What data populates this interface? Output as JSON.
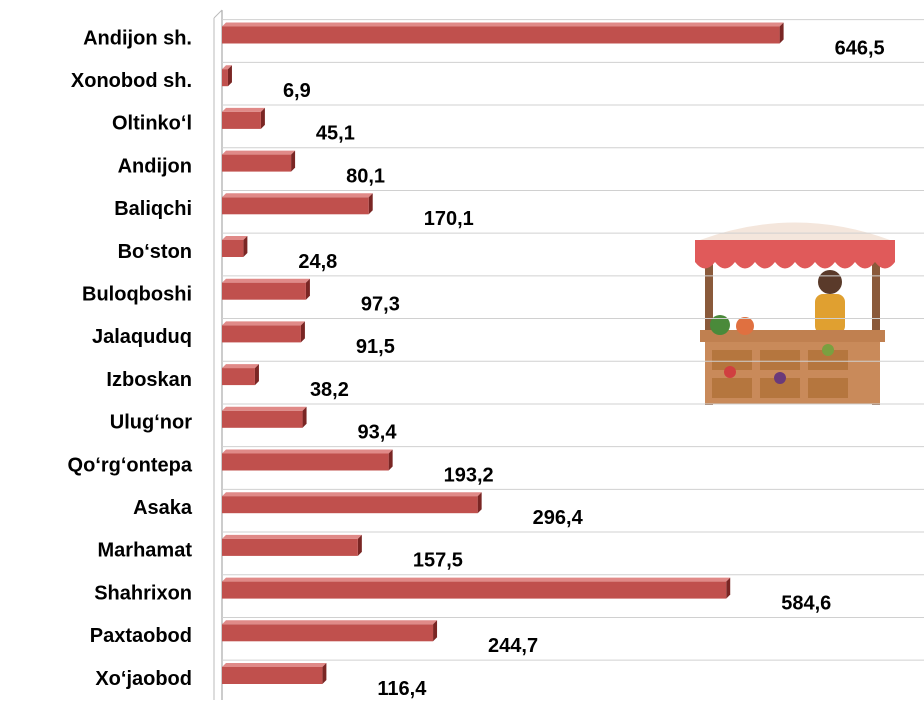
{
  "chart_data": {
    "type": "bar",
    "orientation": "horizontal",
    "color": "#c0504d",
    "categories": [
      "Andijon sh.",
      "Xonobod sh.",
      "Oltinko‘l",
      "Andijon",
      "Baliqchi",
      "Bo‘ston",
      "Buloqboshi",
      "Jalaquduq",
      "Izboskan",
      "Ulug‘nor",
      "Qo‘rg‘ontepa",
      "Asaka",
      "Marhamat",
      "Shahrixon",
      "Paxtaobod",
      "Xo‘jaobod"
    ],
    "values": [
      646.5,
      6.9,
      45.1,
      80.1,
      170.1,
      24.8,
      97.3,
      91.5,
      38.2,
      93.4,
      193.2,
      296.4,
      157.5,
      584.6,
      244.7,
      116.4
    ],
    "value_labels": [
      "646,5",
      "6,9",
      "45,1",
      "80,1",
      "170,1",
      "24,8",
      "97,3",
      "91,5",
      "38,2",
      "93,4",
      "193,2",
      "296,4",
      "157,5",
      "584,6",
      "244,7",
      "116,4"
    ],
    "xlim": [
      0,
      800
    ],
    "grid": true
  }
}
